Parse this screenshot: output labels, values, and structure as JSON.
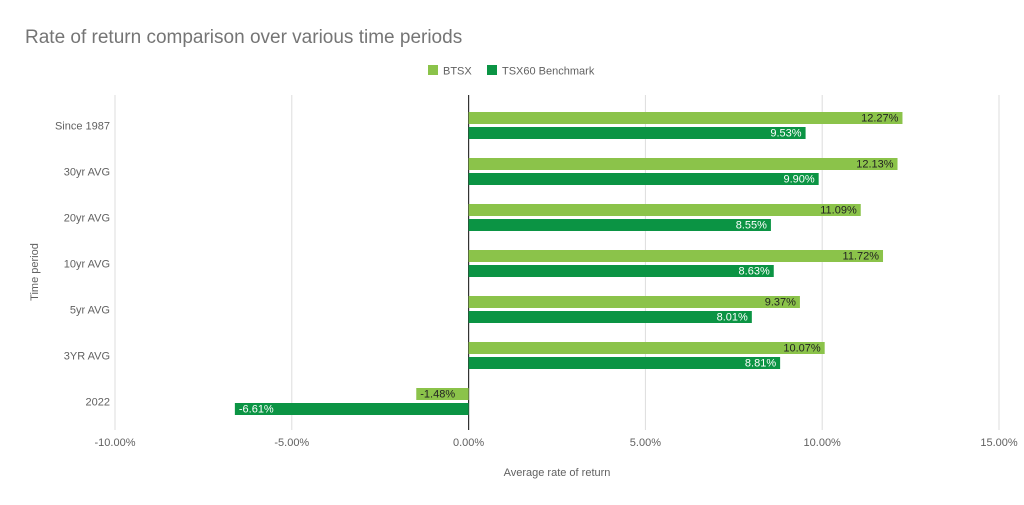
{
  "chart_data": {
    "type": "bar",
    "orientation": "horizontal",
    "title": "Rate of return comparison over various time periods",
    "xlabel": "Average rate of return",
    "ylabel": "Time period",
    "categories": [
      "Since 1987",
      "30yr AVG",
      "20yr AVG",
      "10yr AVG",
      "5yr AVG",
      "3YR AVG",
      "2022"
    ],
    "series": [
      {
        "name": "BTSX",
        "color": "#8bc34a",
        "values": [
          12.27,
          12.13,
          11.09,
          11.72,
          9.37,
          10.07,
          -1.48
        ],
        "labels": [
          "12.27%",
          "12.13%",
          "11.09%",
          "11.72%",
          "9.37%",
          "10.07%",
          "-1.48%"
        ]
      },
      {
        "name": "TSX60 Benchmark",
        "color": "#0b9444",
        "values": [
          9.53,
          9.9,
          8.55,
          8.63,
          8.01,
          8.81,
          -6.61
        ],
        "labels": [
          "9.53%",
          "9.90%",
          "8.55%",
          "8.63%",
          "8.01%",
          "8.81%",
          "-6.61%"
        ]
      }
    ],
    "xlim": [
      -10,
      15
    ],
    "xticks": [
      -10,
      -5,
      0,
      5,
      10,
      15
    ],
    "xtick_labels": [
      "-10.00%",
      "-5.00%",
      "0.00%",
      "5.00%",
      "10.00%",
      "15.00%"
    ],
    "grid": true,
    "legend_position": "top"
  }
}
